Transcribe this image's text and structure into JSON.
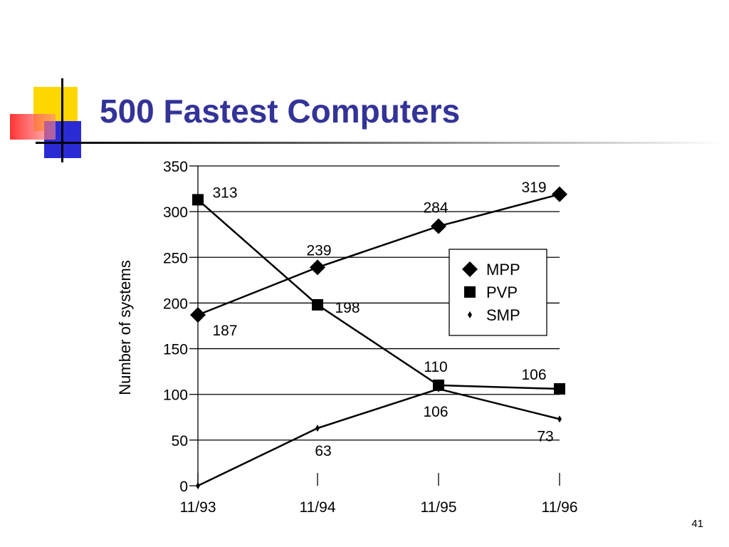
{
  "slide": {
    "title": "500 Fastest Computers",
    "page_number": "41",
    "title_color": "#333399",
    "deco_colors": {
      "yellow": "#ffd700",
      "red": "#ff3333",
      "blue": "#2b2bd6",
      "line": "#000000"
    }
  },
  "chart_data": {
    "type": "line",
    "title": "",
    "xlabel": "",
    "ylabel": "Number of systems",
    "categories": [
      "11/93",
      "11/94",
      "11/95",
      "11/96"
    ],
    "ylim": [
      0,
      350
    ],
    "yticks": [
      0,
      50,
      100,
      150,
      200,
      250,
      300,
      350
    ],
    "grid": true,
    "legend_position": "right",
    "series": [
      {
        "name": "MPP",
        "marker": "diamond",
        "values": [
          187,
          239,
          284,
          319
        ],
        "labels": [
          "187",
          "239",
          "284",
          "319"
        ]
      },
      {
        "name": "PVP",
        "marker": "square",
        "values": [
          313,
          198,
          110,
          106
        ],
        "labels": [
          "313",
          "198",
          "110",
          "106"
        ]
      },
      {
        "name": "SMP",
        "marker": "small-diamond",
        "values": [
          0,
          63,
          106,
          73
        ],
        "labels": [
          "",
          "63",
          "106",
          "73"
        ]
      }
    ]
  }
}
